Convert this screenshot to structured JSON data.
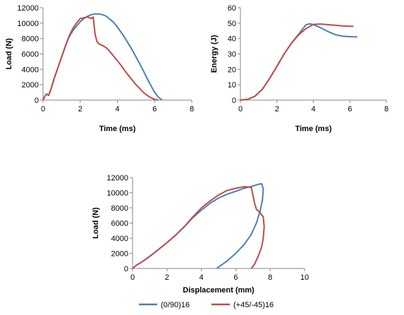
{
  "colors": {
    "series_0_90": "#4a7ebb",
    "series_45": "#be4b48",
    "axis": "#868686"
  },
  "legend": {
    "placement": "bottom",
    "entries": [
      {
        "label": "(0/90)16",
        "color": "#4a7ebb"
      },
      {
        "label": "(+45/-45)16",
        "color": "#be4b48"
      }
    ]
  },
  "chart_data": [
    {
      "type": "line",
      "xlabel": "Time (ms)",
      "ylabel": "Load (N)",
      "xlim": [
        0,
        8
      ],
      "ylim": [
        0,
        12000
      ],
      "xticks": [
        "0",
        "2",
        "4",
        "6",
        "8"
      ],
      "yticks": [
        "0",
        "2000",
        "4000",
        "6000",
        "8000",
        "10000",
        "12000"
      ],
      "grid": false,
      "series": [
        {
          "name": "(0/90)16",
          "color": "#4a7ebb",
          "x": [
            0,
            0.1,
            0.2,
            0.3,
            0.4,
            0.5,
            0.6,
            0.8,
            1.0,
            1.2,
            1.4,
            1.6,
            1.8,
            2.0,
            2.2,
            2.4,
            2.6,
            2.8,
            3.0,
            3.2,
            3.4,
            3.6,
            3.8,
            4.0,
            4.2,
            4.4,
            4.6,
            4.8,
            5.0,
            5.2,
            5.4,
            5.6,
            5.8,
            6.0,
            6.2,
            6.4
          ],
          "y": [
            0,
            500,
            800,
            600,
            1200,
            2000,
            2800,
            4200,
            5600,
            7000,
            8200,
            9000,
            9600,
            10200,
            10600,
            10900,
            11100,
            11200,
            11200,
            11100,
            10900,
            10500,
            10100,
            9500,
            8800,
            8100,
            7300,
            6500,
            5600,
            4700,
            3800,
            2800,
            1900,
            1000,
            400,
            0
          ]
        },
        {
          "name": "(+45/-45)16",
          "color": "#be4b48",
          "x": [
            0,
            0.1,
            0.2,
            0.3,
            0.4,
            0.5,
            0.6,
            0.8,
            1.0,
            1.2,
            1.4,
            1.6,
            1.8,
            2.0,
            2.2,
            2.4,
            2.6,
            2.7,
            2.8,
            2.9,
            3.0,
            3.2,
            3.4,
            3.6,
            3.8,
            4.0,
            4.2,
            4.4,
            4.6,
            4.8,
            5.0,
            5.2,
            5.4,
            5.6,
            5.8,
            6.0,
            6.2
          ],
          "y": [
            0,
            500,
            800,
            600,
            1200,
            2000,
            2800,
            4200,
            5600,
            7000,
            8300,
            9300,
            10000,
            10600,
            10700,
            10800,
            10600,
            10800,
            8600,
            7600,
            7300,
            7100,
            6800,
            6300,
            5700,
            5100,
            4500,
            3800,
            3200,
            2600,
            2000,
            1500,
            1000,
            600,
            300,
            100,
            0
          ]
        }
      ]
    },
    {
      "type": "line",
      "xlabel": "Time (ms)",
      "ylabel": "Energy (J)",
      "xlim": [
        0,
        8
      ],
      "ylim": [
        0,
        60
      ],
      "xticks": [
        "0",
        "2",
        "4",
        "6",
        "8"
      ],
      "yticks": [
        "0",
        "10",
        "20",
        "30",
        "40",
        "50",
        "60"
      ],
      "grid": false,
      "series": [
        {
          "name": "(0/90)16",
          "color": "#4a7ebb",
          "x": [
            0,
            0.4,
            0.8,
            1.2,
            1.6,
            2.0,
            2.4,
            2.8,
            3.2,
            3.6,
            3.8,
            4.0,
            4.4,
            4.8,
            5.2,
            5.6,
            6.0,
            6.4
          ],
          "y": [
            0,
            0.5,
            2.5,
            7,
            14,
            22,
            30,
            37,
            43,
            49,
            49.5,
            49,
            47,
            44.5,
            42.5,
            41.5,
            41.2,
            41
          ]
        },
        {
          "name": "(+45/-45)16",
          "color": "#be4b48",
          "x": [
            0,
            0.4,
            0.8,
            1.2,
            1.6,
            2.0,
            2.4,
            2.8,
            3.2,
            3.6,
            4.0,
            4.4,
            4.8,
            5.2,
            5.6,
            6.0,
            6.2
          ],
          "y": [
            0,
            0.5,
            2.5,
            7,
            14,
            22,
            30,
            37,
            42.5,
            46.5,
            49.2,
            49.4,
            49,
            48.6,
            48.2,
            48,
            48
          ]
        }
      ]
    },
    {
      "type": "line",
      "xlabel": "Displacement (mm)",
      "ylabel": "Load (N)",
      "xlim": [
        0,
        10
      ],
      "ylim": [
        0,
        12000
      ],
      "xticks": [
        "0",
        "2",
        "4",
        "6",
        "8",
        "10"
      ],
      "yticks": [
        "0",
        "2000",
        "4000",
        "6000",
        "8000",
        "10000",
        "12000"
      ],
      "grid": false,
      "series": [
        {
          "name": "(0/90)16",
          "color": "#4a7ebb",
          "x": [
            0,
            0.2,
            0.5,
            1.0,
            1.5,
            2.0,
            2.5,
            3.0,
            3.5,
            4.0,
            4.5,
            5.0,
            5.5,
            6.0,
            6.5,
            7.0,
            7.3,
            7.5,
            7.6,
            7.55,
            7.4,
            7.2,
            6.9,
            6.5,
            6.0,
            5.5,
            5.0,
            4.9
          ],
          "y": [
            0,
            400,
            800,
            1600,
            2500,
            3400,
            4400,
            5500,
            6700,
            7700,
            8600,
            9300,
            9800,
            10200,
            10600,
            10900,
            11100,
            11200,
            10500,
            9000,
            7500,
            6000,
            4500,
            3200,
            2000,
            1000,
            200,
            0
          ]
        },
        {
          "name": "(+45/-45)16",
          "color": "#be4b48",
          "x": [
            0,
            0.2,
            0.5,
            1.0,
            1.5,
            2.0,
            2.5,
            3.0,
            3.5,
            4.0,
            4.5,
            5.0,
            5.5,
            6.0,
            6.5,
            6.9,
            7.1,
            7.2,
            7.4,
            7.6,
            7.65,
            7.6,
            7.5,
            7.3,
            7.1,
            6.9
          ],
          "y": [
            0,
            400,
            800,
            1600,
            2500,
            3400,
            4400,
            5500,
            6800,
            8000,
            8900,
            9700,
            10300,
            10600,
            10800,
            10700,
            8600,
            7800,
            7400,
            6800,
            5500,
            4000,
            2800,
            1600,
            600,
            0
          ]
        }
      ]
    }
  ]
}
